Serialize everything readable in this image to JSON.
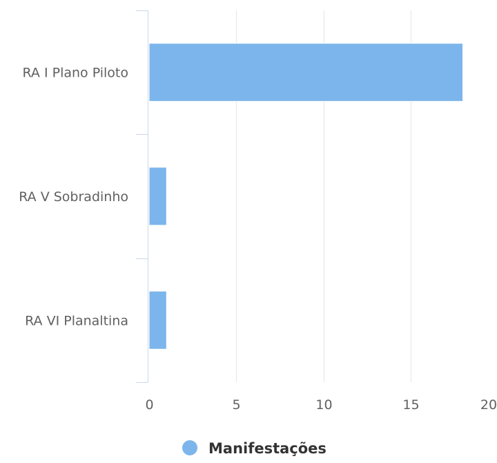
{
  "chart_data": {
    "type": "bar",
    "orientation": "horizontal",
    "categories": [
      "RA I Plano Piloto",
      "RA V Sobradinho",
      "RA VI Planaltina"
    ],
    "series": [
      {
        "name": "Manifestações",
        "values": [
          18,
          1,
          1
        ],
        "color": "#7cb5ec"
      }
    ],
    "x_ticks": [
      "0",
      "5",
      "10",
      "15",
      "20"
    ],
    "xlim": [
      0,
      20
    ],
    "grid": true,
    "legend_position": "bottom-center"
  }
}
